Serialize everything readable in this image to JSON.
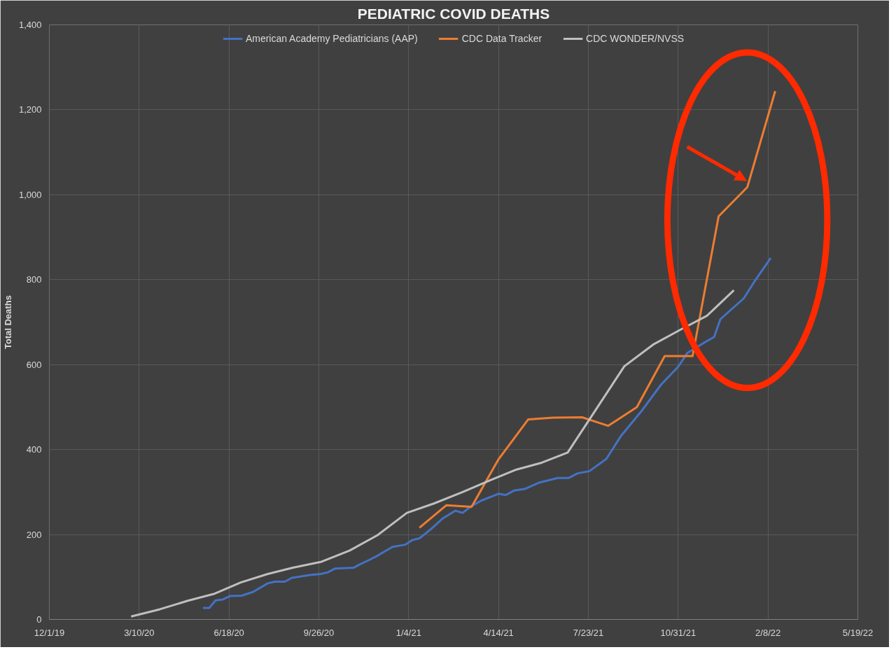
{
  "chart_data": {
    "type": "line",
    "title": "PEDIATRIC COVID DEATHS",
    "ylabel": "Total Deaths",
    "xlim": [
      "2019-12-01",
      "2022-05-19"
    ],
    "xticks": [
      {
        "value": "2019-12-01",
        "label": "12/1/19"
      },
      {
        "value": "2020-03-10",
        "label": "3/10/20"
      },
      {
        "value": "2020-06-18",
        "label": "6/18/20"
      },
      {
        "value": "2020-09-26",
        "label": "9/26/20"
      },
      {
        "value": "2021-01-04",
        "label": "1/4/21"
      },
      {
        "value": "2021-04-14",
        "label": "4/14/21"
      },
      {
        "value": "2021-07-23",
        "label": "7/23/21"
      },
      {
        "value": "2021-10-31",
        "label": "10/31/21"
      },
      {
        "value": "2022-02-08",
        "label": "2/8/22"
      },
      {
        "value": "2022-05-19",
        "label": "5/19/22"
      }
    ],
    "ylim": [
      0,
      1400
    ],
    "yticks": [
      0,
      200,
      400,
      600,
      800,
      {
        "value": 1000,
        "label": "1,000"
      },
      {
        "value": 1200,
        "label": "1,200"
      },
      {
        "value": 1400,
        "label": "1,400"
      }
    ],
    "grid": true,
    "legend": "top",
    "marker": "none",
    "line_style": "solid",
    "series": [
      {
        "name": "American Academy Pediatricians (AAP)",
        "color": "#4472c4",
        "x": [
          "2020-05-20",
          "2020-05-27",
          "2020-06-03",
          "2020-06-11",
          "2020-06-19",
          "2020-07-02",
          "2020-07-15",
          "2020-07-31",
          "2020-08-08",
          "2020-08-19",
          "2020-08-27",
          "2020-09-17",
          "2020-09-28",
          "2020-10-06",
          "2020-10-14",
          "2020-11-04",
          "2020-11-10",
          "2020-11-21",
          "2020-12-01",
          "2020-12-17",
          "2020-12-31",
          "2021-01-08",
          "2021-01-16",
          "2021-01-29",
          "2021-02-11",
          "2021-02-25",
          "2021-03-05",
          "2021-03-15",
          "2021-03-26",
          "2021-04-14",
          "2021-04-22",
          "2021-05-02",
          "2021-05-13",
          "2021-05-29",
          "2021-06-19",
          "2021-07-01",
          "2021-07-11",
          "2021-07-24",
          "2021-08-12",
          "2021-08-28",
          "2021-09-21",
          "2021-10-12",
          "2021-10-31",
          "2021-11-10",
          "2021-11-30",
          "2021-12-10",
          "2021-12-17",
          "2022-01-12",
          "2022-01-24",
          "2022-02-11"
        ],
        "values": [
          27,
          27,
          45,
          47,
          55,
          56,
          65,
          85,
          89,
          89,
          98,
          105,
          107,
          111,
          120,
          122,
          129,
          140,
          151,
          171,
          176,
          187,
          191,
          213,
          238,
          256,
          251,
          267,
          280,
          296,
          293,
          304,
          307,
          322,
          333,
          333,
          344,
          349,
          378,
          431,
          493,
          553,
          595,
          627,
          653,
          665,
          707,
          756,
          796,
          851
        ]
      },
      {
        "name": "CDC Data Tracker",
        "color": "#ed7d31",
        "x": [
          "2021-01-16",
          "2021-02-15",
          "2021-03-15",
          "2021-04-14",
          "2021-05-17",
          "2021-06-14",
          "2021-07-16",
          "2021-08-14",
          "2021-09-15",
          "2021-10-16",
          "2021-11-16",
          "2021-12-15",
          "2022-01-16",
          "2022-02-16"
        ],
        "values": [
          216,
          269,
          265,
          377,
          471,
          475,
          476,
          456,
          500,
          620,
          620,
          949,
          1018,
          1244
        ]
      },
      {
        "name": "CDC WONDER/NVSS",
        "color": "#bfbfbf",
        "x": [
          "2020-03-01",
          "2020-04-02",
          "2020-05-03",
          "2020-06-01",
          "2020-07-01",
          "2020-07-31",
          "2020-08-28",
          "2020-09-29",
          "2020-10-30",
          "2020-11-30",
          "2021-01-02",
          "2021-02-01",
          "2021-03-05",
          "2021-04-04",
          "2021-05-04",
          "2021-06-01",
          "2021-06-30",
          "2021-07-27",
          "2021-09-01",
          "2021-10-03",
          "2021-11-04",
          "2021-12-02",
          "2022-01-01"
        ],
        "values": [
          7,
          24,
          44,
          60,
          87,
          107,
          122,
          136,
          162,
          198,
          251,
          273,
          300,
          327,
          353,
          369,
          393,
          480,
          596,
          647,
          684,
          715,
          775
        ]
      }
    ]
  }
}
